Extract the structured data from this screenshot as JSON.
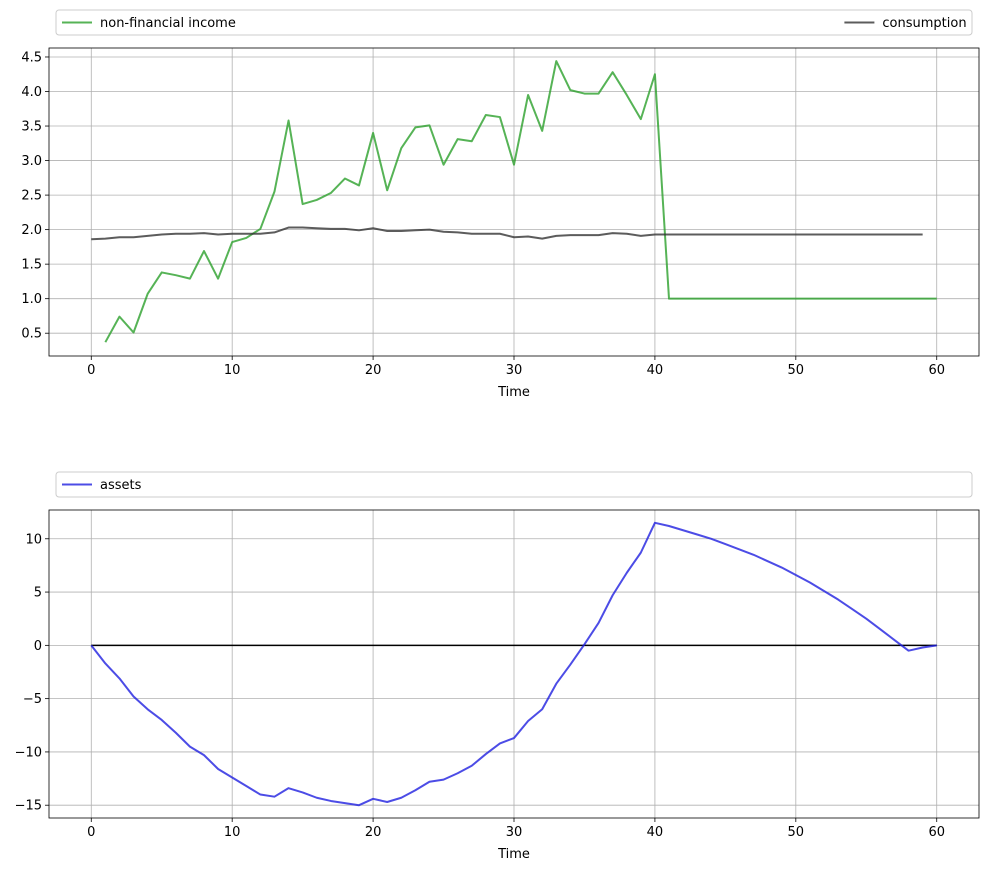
{
  "chart_data": [
    {
      "type": "line",
      "xlabel": "Time",
      "ylabel": "",
      "xlim": [
        -3,
        63
      ],
      "ylim": [
        0.17,
        4.63
      ],
      "xticks": [
        0,
        10,
        20,
        30,
        40,
        50,
        60
      ],
      "yticks": [
        0.5,
        1.0,
        1.5,
        2.0,
        2.5,
        3.0,
        3.5,
        4.0,
        4.5
      ],
      "ytick_labels": [
        "0.5",
        "1.0",
        "1.5",
        "2.0",
        "2.5",
        "3.0",
        "3.5",
        "4.0",
        "4.5"
      ],
      "grid": true,
      "legend_position": "top",
      "series": [
        {
          "name": "non-financial income",
          "color": "#2ca02c",
          "x": [
            1,
            2,
            3,
            4,
            5,
            6,
            7,
            8,
            9,
            10,
            11,
            12,
            13,
            14,
            15,
            16,
            17,
            18,
            19,
            20,
            21,
            22,
            23,
            24,
            25,
            26,
            27,
            28,
            29,
            30,
            31,
            32,
            33,
            34,
            35,
            36,
            37,
            38,
            39,
            40,
            41,
            42,
            43,
            44,
            45,
            46,
            47,
            48,
            49,
            50,
            51,
            52,
            53,
            54,
            55,
            56,
            57,
            58,
            59,
            60
          ],
          "y": [
            0.37,
            0.74,
            0.51,
            1.07,
            1.38,
            1.34,
            1.29,
            1.69,
            1.29,
            1.82,
            1.88,
            2.01,
            2.55,
            3.58,
            2.37,
            2.43,
            2.53,
            2.74,
            2.64,
            3.4,
            2.57,
            3.18,
            3.48,
            3.51,
            2.94,
            3.31,
            3.28,
            3.66,
            3.63,
            2.94,
            3.95,
            3.43,
            4.44,
            4.02,
            3.97,
            3.97,
            4.28,
            3.95,
            3.6,
            4.25,
            1.0,
            1.0,
            1.0,
            1.0,
            1.0,
            1.0,
            1.0,
            1.0,
            1.0,
            1.0,
            1.0,
            1.0,
            1.0,
            1.0,
            1.0,
            1.0,
            1.0,
            1.0,
            1.0,
            1.0
          ]
        },
        {
          "name": "consumption",
          "color": "#333333",
          "x": [
            0,
            1,
            2,
            3,
            4,
            5,
            6,
            7,
            8,
            9,
            10,
            11,
            12,
            13,
            14,
            15,
            16,
            17,
            18,
            19,
            20,
            21,
            22,
            23,
            24,
            25,
            26,
            27,
            28,
            29,
            30,
            31,
            32,
            33,
            34,
            35,
            36,
            37,
            38,
            39,
            40,
            41,
            42,
            43,
            44,
            45,
            46,
            47,
            48,
            49,
            50,
            51,
            52,
            53,
            54,
            55,
            56,
            57,
            58,
            59
          ],
          "y": [
            1.86,
            1.87,
            1.89,
            1.89,
            1.91,
            1.93,
            1.94,
            1.94,
            1.95,
            1.93,
            1.94,
            1.94,
            1.94,
            1.96,
            2.03,
            2.03,
            2.02,
            2.01,
            2.01,
            1.99,
            2.02,
            1.98,
            1.98,
            1.99,
            2.0,
            1.97,
            1.96,
            1.94,
            1.94,
            1.94,
            1.89,
            1.9,
            1.87,
            1.91,
            1.92,
            1.92,
            1.92,
            1.95,
            1.94,
            1.91,
            1.93,
            1.93,
            1.93,
            1.93,
            1.93,
            1.93,
            1.93,
            1.93,
            1.93,
            1.93,
            1.93,
            1.93,
            1.93,
            1.93,
            1.93,
            1.93,
            1.93,
            1.93,
            1.93,
            1.93
          ]
        }
      ]
    },
    {
      "type": "line",
      "xlabel": "Time",
      "ylabel": "",
      "xlim": [
        -3,
        63
      ],
      "ylim": [
        -16.2,
        12.7
      ],
      "xticks": [
        0,
        10,
        20,
        30,
        40,
        50,
        60
      ],
      "yticks": [
        -15,
        -10,
        -5,
        0,
        5,
        10
      ],
      "ytick_labels": [
        "−15",
        "−10",
        "−5",
        "0",
        "5",
        "10"
      ],
      "grid": true,
      "legend_position": "top",
      "zero_line": true,
      "series": [
        {
          "name": "assets",
          "color": "#1f1fe0",
          "x": [
            0,
            1,
            2,
            3,
            4,
            5,
            6,
            7,
            8,
            9,
            10,
            11,
            12,
            13,
            14,
            15,
            16,
            17,
            18,
            19,
            20,
            21,
            22,
            23,
            24,
            25,
            26,
            27,
            28,
            29,
            30,
            31,
            32,
            33,
            34,
            35,
            36,
            37,
            38,
            39,
            40,
            41,
            42,
            43,
            44,
            45,
            46,
            47,
            48,
            49,
            50,
            51,
            52,
            53,
            54,
            55,
            56,
            57,
            58,
            59,
            60
          ],
          "y": [
            0,
            -1.7,
            -3.1,
            -4.8,
            -6.0,
            -7.0,
            -8.2,
            -9.5,
            -10.3,
            -11.6,
            -12.4,
            -13.2,
            -14.0,
            -14.2,
            -13.4,
            -13.8,
            -14.3,
            -14.6,
            -14.8,
            -15.0,
            -14.4,
            -14.7,
            -14.3,
            -13.6,
            -12.8,
            -12.6,
            -12.0,
            -11.3,
            -10.2,
            -9.2,
            -8.7,
            -7.1,
            -6.0,
            -3.6,
            -1.8,
            0.1,
            2.1,
            4.7,
            6.8,
            8.7,
            11.5,
            11.2,
            10.8,
            10.4,
            10.0,
            9.5,
            9.0,
            8.5,
            7.9,
            7.3,
            6.6,
            5.9,
            5.1,
            4.3,
            3.4,
            2.5,
            1.5,
            0.5,
            -0.5,
            -0.2,
            0
          ]
        }
      ]
    }
  ]
}
